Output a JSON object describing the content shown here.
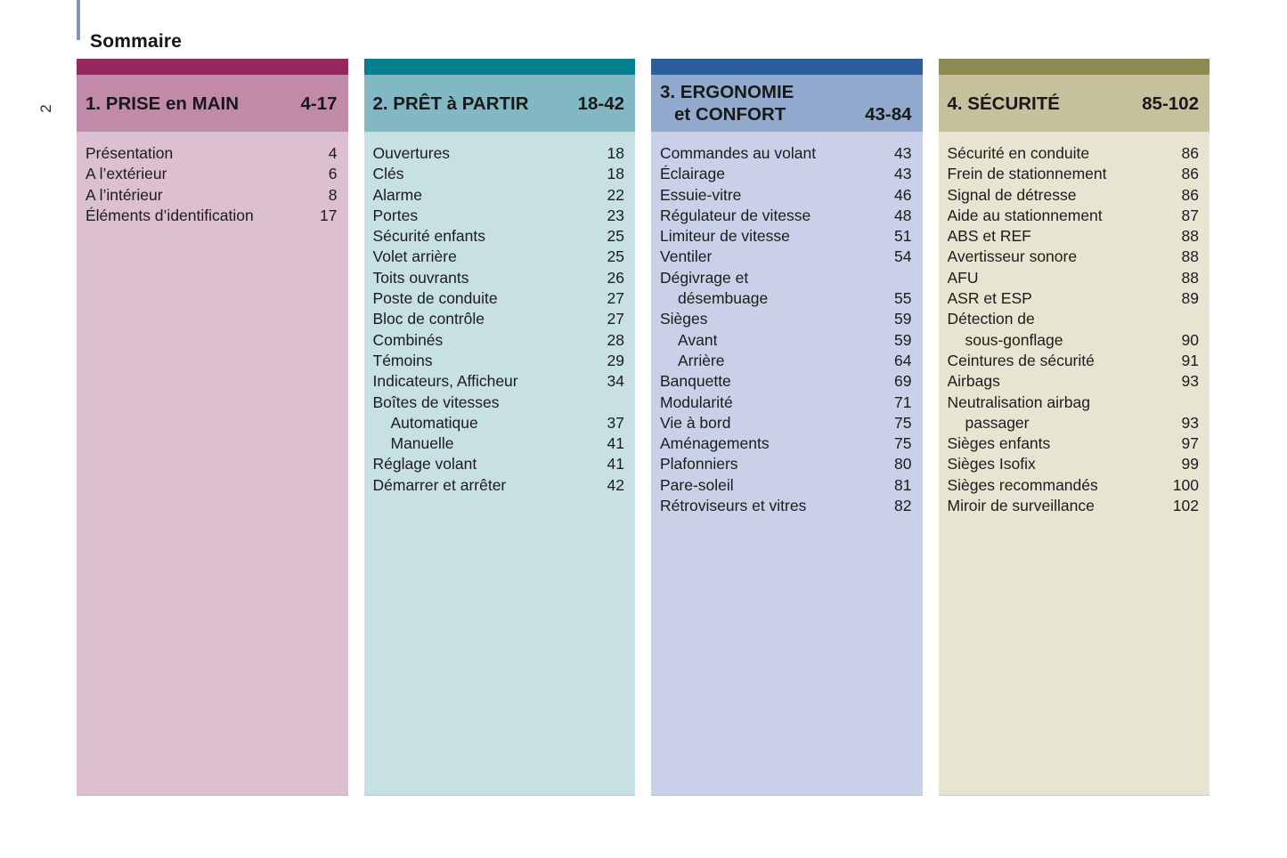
{
  "page": {
    "title": "Sommaire",
    "side_page_number": "2",
    "accent_line_color": "#7e95b4",
    "text_color": "#1c1c1c"
  },
  "sections": [
    {
      "id": "prise-en-main",
      "title_lines": [
        "1. PRISE en MAIN"
      ],
      "pages": "4-17",
      "colors": {
        "bar": "#97265f",
        "band": "#c28aa9",
        "body": "#dcc0cf"
      },
      "items": [
        {
          "label": "Présentation",
          "page": "4",
          "indent": false
        },
        {
          "label": "A l’extérieur",
          "page": "6",
          "indent": false
        },
        {
          "label": "A l’intérieur",
          "page": "8",
          "indent": false
        },
        {
          "label": "Éléments d’identification",
          "page": "17",
          "indent": false
        }
      ]
    },
    {
      "id": "pret-a-partir",
      "title_lines": [
        "2. PRÊT à PARTIR"
      ],
      "pages": "18-42",
      "colors": {
        "bar": "#03808e",
        "band": "#82b8c4",
        "body": "#c7e0e4"
      },
      "items": [
        {
          "label": "Ouvertures",
          "page": "18",
          "indent": false
        },
        {
          "label": "Clés",
          "page": "18",
          "indent": false
        },
        {
          "label": "Alarme",
          "page": "22",
          "indent": false
        },
        {
          "label": "Portes",
          "page": "23",
          "indent": false
        },
        {
          "label": "Sécurité enfants",
          "page": "25",
          "indent": false
        },
        {
          "label": "Volet arrière",
          "page": "25",
          "indent": false
        },
        {
          "label": "Toits ouvrants",
          "page": "26",
          "indent": false
        },
        {
          "label": "Poste de conduite",
          "page": "27",
          "indent": false
        },
        {
          "label": "Bloc de contrôle",
          "page": "27",
          "indent": false
        },
        {
          "label": "Combinés",
          "page": "28",
          "indent": false
        },
        {
          "label": "Témoins",
          "page": "29",
          "indent": false
        },
        {
          "label": "Indicateurs, Afficheur",
          "page": "34",
          "indent": false
        },
        {
          "label": "Boîtes de vitesses",
          "page": "",
          "indent": false
        },
        {
          "label": "Automatique",
          "page": "37",
          "indent": true
        },
        {
          "label": "Manuelle",
          "page": "41",
          "indent": true
        },
        {
          "label": "Réglage volant",
          "page": "41",
          "indent": false
        },
        {
          "label": "Démarrer et arrêter",
          "page": "42",
          "indent": false
        }
      ]
    },
    {
      "id": "ergonomie-et-confort",
      "title_lines": [
        "3. ERGONOMIE",
        "et CONFORT"
      ],
      "pages": "43-84",
      "colors": {
        "bar": "#2c5d9e",
        "band": "#93aacf",
        "body": "#c8d1e8"
      },
      "items": [
        {
          "label": "Commandes au volant",
          "page": "43",
          "indent": false
        },
        {
          "label": "Éclairage",
          "page": "43",
          "indent": false
        },
        {
          "label": "Essuie-vitre",
          "page": "46",
          "indent": false
        },
        {
          "label": "Régulateur de vitesse",
          "page": "48",
          "indent": false
        },
        {
          "label": "Limiteur de vitesse",
          "page": "51",
          "indent": false
        },
        {
          "label": "Ventiler",
          "page": "54",
          "indent": false
        },
        {
          "label": "Dégivrage et",
          "page": "",
          "indent": false
        },
        {
          "label": "désembuage",
          "page": "55",
          "indent": true
        },
        {
          "label": "Sièges",
          "page": "59",
          "indent": false
        },
        {
          "label": "Avant",
          "page": "59",
          "indent": true
        },
        {
          "label": "Arrière",
          "page": "64",
          "indent": true
        },
        {
          "label": "Banquette",
          "page": "69",
          "indent": false
        },
        {
          "label": "Modularité",
          "page": "71",
          "indent": false
        },
        {
          "label": "Vie à bord",
          "page": "75",
          "indent": false
        },
        {
          "label": "Aménagements",
          "page": "75",
          "indent": false
        },
        {
          "label": "Plafonniers",
          "page": "80",
          "indent": false
        },
        {
          "label": "Pare-soleil",
          "page": "81",
          "indent": false
        },
        {
          "label": "Rétroviseurs et vitres",
          "page": "82",
          "indent": false
        }
      ]
    },
    {
      "id": "securite",
      "title_lines": [
        "4. SÉCURITÉ"
      ],
      "pages": "85-102",
      "colors": {
        "bar": "#8e8950",
        "band": "#c6c09c",
        "body": "#e7e4d1"
      },
      "items": [
        {
          "label": "Sécurité en conduite",
          "page": "86",
          "indent": false
        },
        {
          "label": "Frein de stationnement",
          "page": "86",
          "indent": false
        },
        {
          "label": "Signal de détresse",
          "page": "86",
          "indent": false
        },
        {
          "label": "Aide au stationnement",
          "page": "87",
          "indent": false
        },
        {
          "label": "ABS et REF",
          "page": "88",
          "indent": false
        },
        {
          "label": "Avertisseur sonore",
          "page": "88",
          "indent": false
        },
        {
          "label": "AFU",
          "page": "88",
          "indent": false
        },
        {
          "label": "ASR et ESP",
          "page": "89",
          "indent": false
        },
        {
          "label": "Détection de",
          "page": "",
          "indent": false
        },
        {
          "label": "sous-gonflage",
          "page": "90",
          "indent": true
        },
        {
          "label": "Ceintures de sécurité",
          "page": "91",
          "indent": false
        },
        {
          "label": "Airbags",
          "page": "93",
          "indent": false
        },
        {
          "label": "Neutralisation airbag",
          "page": "",
          "indent": false
        },
        {
          "label": "passager",
          "page": "93",
          "indent": true
        },
        {
          "label": "Sièges enfants",
          "page": "97",
          "indent": false
        },
        {
          "label": "Sièges Isofix",
          "page": "99",
          "indent": false
        },
        {
          "label": "Sièges recommandés",
          "page": "100",
          "indent": false
        },
        {
          "label": "Miroir de surveillance",
          "page": "102",
          "indent": false
        }
      ]
    }
  ]
}
